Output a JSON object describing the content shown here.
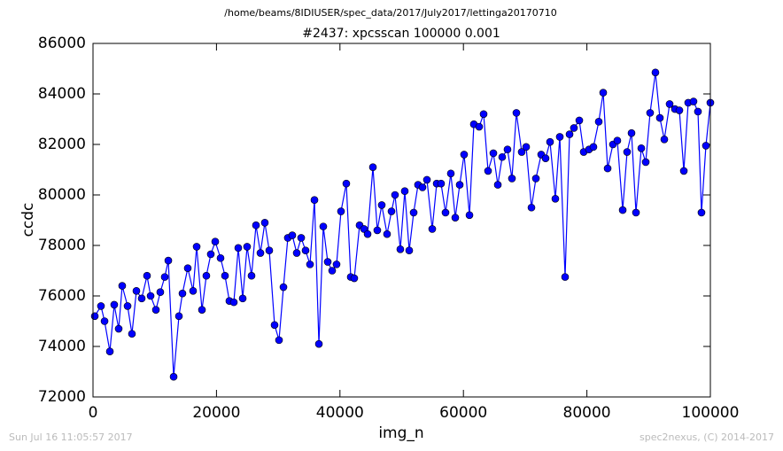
{
  "chart_data": {
    "type": "line",
    "suptitle": "/home/beams/8IDIUSER/spec_data/2017/July2017/lettinga20170710",
    "title": "#2437: xpcsscan 100000 0.001",
    "x_label": "img_n",
    "y_label": "ccdc",
    "footer_left": "Sun Jul 16 11:05:57 2017",
    "footer_right": "spec2nexus, (C) 2014-2017",
    "xlim": [
      0,
      100000
    ],
    "xticks": [
      0,
      20000,
      40000,
      60000,
      80000,
      100000
    ],
    "ylim": [
      72000,
      86000
    ],
    "yticks": [
      72000,
      74000,
      76000,
      78000,
      80000,
      82000,
      84000,
      86000
    ],
    "grid": false,
    "marker": "circle",
    "x": [
      290,
      1290,
      1870,
      2730,
      3440,
      4160,
      4730,
      5600,
      6310,
      7030,
      7890,
      8750,
      9330,
      10190,
      10900,
      11620,
      12200,
      13060,
      13920,
      14490,
      15350,
      16210,
      16790,
      17650,
      18360,
      19080,
      19800,
      20660,
      21380,
      22090,
      22810,
      23530,
      24250,
      24960,
      25680,
      26400,
      27120,
      27830,
      28550,
      29410,
      30130,
      30850,
      31560,
      32280,
      33000,
      33720,
      34430,
      35150,
      35870,
      36590,
      37300,
      38020,
      38740,
      39450,
      40170,
      41030,
      41750,
      42320,
      43180,
      43900,
      44480,
      45340,
      46050,
      46770,
      47630,
      48350,
      48920,
      49780,
      50500,
      51220,
      51940,
      52650,
      53370,
      54090,
      54950,
      55670,
      56380,
      57100,
      57960,
      58680,
      59400,
      60110,
      60980,
      61690,
      62550,
      63270,
      63990,
      64850,
      65570,
      66280,
      67140,
      67860,
      68580,
      69440,
      70160,
      71020,
      71740,
      72600,
      73310,
      74030,
      74890,
      75610,
      76470,
      77190,
      77900,
      78770,
      79480,
      80340,
      81060,
      81920,
      82640,
      83360,
      84220,
      84930,
      85800,
      86510,
      87230,
      87950,
      88810,
      89530,
      90240,
      91100,
      91820,
      92540,
      93400,
      94260,
      94980,
      95700,
      96410,
      97270,
      97990,
      98560,
      99280,
      100000
    ],
    "series": [
      {
        "name": "ccdc",
        "color": "#0000ff",
        "values": [
          75200,
          75600,
          75000,
          73800,
          75650,
          74700,
          76400,
          75600,
          74500,
          76200,
          75900,
          76800,
          76000,
          75450,
          76150,
          76750,
          77400,
          72800,
          75200,
          76100,
          77100,
          76200,
          77950,
          75450,
          76800,
          77650,
          78150,
          77500,
          76800,
          75800,
          75750,
          77900,
          75900,
          77950,
          76800,
          78800,
          77700,
          78900,
          77800,
          74850,
          74250,
          76350,
          78300,
          78400,
          77700,
          78300,
          77800,
          77250,
          79800,
          74100,
          78750,
          77350,
          77000,
          77250,
          79350,
          80450,
          76750,
          76700,
          78800,
          78650,
          78450,
          81100,
          78600,
          79600,
          78450,
          79350,
          80000,
          77850,
          80150,
          77800,
          79300,
          80400,
          80300,
          80600,
          78650,
          80450,
          80450,
          79300,
          80850,
          79100,
          80400,
          81600,
          79200,
          82800,
          82700,
          83200,
          80950,
          81650,
          80400,
          81500,
          81800,
          80650,
          83250,
          81700,
          81900,
          79500,
          80650,
          81600,
          81450,
          82100,
          79850,
          82300,
          76750,
          82400,
          82650,
          82950,
          81700,
          81800,
          81900,
          82900,
          84050,
          81050,
          82000,
          82150,
          79400,
          81700,
          82450,
          79300,
          81850,
          81300,
          83250,
          84850,
          83050,
          82200,
          83600,
          83400,
          83350,
          80950,
          83650,
          83700,
          83300,
          79300,
          81950,
          83650
        ]
      }
    ]
  }
}
